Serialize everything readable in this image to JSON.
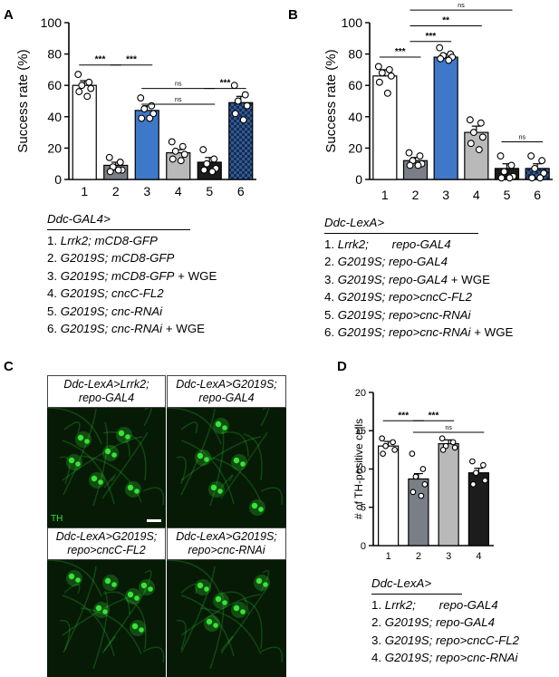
{
  "panels": {
    "A": {
      "letter": "A",
      "chart_data": {
        "type": "bar",
        "ylabel": "Success rate (%)",
        "ylim": [
          0,
          100
        ],
        "yticks": [
          0,
          20,
          40,
          60,
          80,
          100
        ],
        "categories": [
          "1",
          "2",
          "3",
          "4",
          "5",
          "6"
        ],
        "values": [
          60,
          9,
          44,
          17,
          11,
          49
        ],
        "errors": [
          3,
          2,
          3,
          2,
          3,
          4
        ],
        "fills": [
          "#ffffff",
          "#7a7f87",
          "#3f78c8",
          "#b9b9b9",
          "#1c1c1c",
          "checker"
        ],
        "points": [
          [
            67,
            62,
            60,
            58,
            56,
            53
          ],
          [
            14,
            11,
            8,
            6,
            5,
            6
          ],
          [
            52,
            47,
            45,
            42,
            39,
            39
          ],
          [
            24,
            21,
            18,
            16,
            13,
            12
          ],
          [
            19,
            13,
            10,
            7,
            6,
            5
          ],
          [
            60,
            54,
            50,
            47,
            42,
            38
          ]
        ],
        "significance": [
          {
            "from": 1,
            "to": 2,
            "label": "***",
            "y": 73
          },
          {
            "from": 2,
            "to": 3,
            "label": "***",
            "y": 73
          },
          {
            "from": 3,
            "to": 5,
            "label": "ns",
            "y": 58
          },
          {
            "from": 3,
            "to": 5,
            "label": "ns",
            "y": 48
          },
          {
            "from": 5,
            "to": 6,
            "label": "***",
            "y": 58
          }
        ]
      },
      "genotype": {
        "header": "Ddc-GAL4>",
        "lines": [
          {
            "n": "1.",
            "it": "Lrrk2; mCD8-GFP",
            "plain": ""
          },
          {
            "n": "2.",
            "it": "G2019S; mCD8-GFP",
            "plain": ""
          },
          {
            "n": "3.",
            "it": "G2019S; mCD8-GFP",
            "plain": " + WGE"
          },
          {
            "n": "4.",
            "it": "G2019S; cncC-FL2",
            "plain": ""
          },
          {
            "n": "5.",
            "it": "G2019S; cnc-RNAi",
            "plain": ""
          },
          {
            "n": "6.",
            "it": "G2019S; cnc-RNAi",
            "plain": " + WGE"
          }
        ]
      }
    },
    "B": {
      "letter": "B",
      "chart_data": {
        "type": "bar",
        "ylabel": "Success rate (%)",
        "ylim": [
          0,
          100
        ],
        "yticks": [
          0,
          20,
          40,
          60,
          80,
          100
        ],
        "categories": [
          "1",
          "2",
          "3",
          "4",
          "5",
          "6"
        ],
        "values": [
          66,
          12,
          78,
          30,
          7,
          7
        ],
        "errors": [
          4,
          2,
          2,
          4,
          3,
          3
        ],
        "fills": [
          "#ffffff",
          "#7a7f87",
          "#3f78c8",
          "#b9b9b9",
          "#1c1c1c",
          "checker"
        ],
        "points": [
          [
            72,
            70,
            68,
            66,
            62,
            55
          ],
          [
            17,
            15,
            12,
            10,
            9,
            9
          ],
          [
            84,
            80,
            79,
            78,
            77,
            76
          ],
          [
            38,
            36,
            30,
            27,
            23,
            19
          ],
          [
            15,
            9,
            5,
            2,
            1,
            1
          ],
          [
            15,
            12,
            7,
            4,
            1,
            1
          ]
        ],
        "significance": [
          {
            "from": 1,
            "to": 2,
            "label": "***",
            "y": 78
          },
          {
            "from": 2,
            "to": 3,
            "label": "***",
            "y": 88
          },
          {
            "from": 2,
            "to": 4,
            "label": "**",
            "y": 98
          },
          {
            "from": 2,
            "to": 5,
            "label": "ns",
            "y": 108
          },
          {
            "from": 5,
            "to": 6,
            "label": "ns",
            "y": 24
          }
        ]
      },
      "genotype": {
        "header": "Ddc-LexA>",
        "lines": [
          {
            "n": "1.",
            "it": "Lrrk2;       repo-GAL4",
            "plain": ""
          },
          {
            "n": "2.",
            "it": "G2019S; repo-GAL4",
            "plain": ""
          },
          {
            "n": "3.",
            "it": "G2019S; repo-GAL4",
            "plain": " + WGE"
          },
          {
            "n": "4.",
            "it": "G2019S; repo>cncC-FL2",
            "plain": ""
          },
          {
            "n": "5.",
            "it": "G2019S; repo>cnc-RNAi",
            "plain": ""
          },
          {
            "n": "6.",
            "it": "G2019S; repo>cnc-RNAi",
            "plain": " + WGE"
          }
        ]
      }
    },
    "C": {
      "letter": "C",
      "images": [
        {
          "label1": "Ddc-LexA>Lrrk2;",
          "label2": "repo-GAL4"
        },
        {
          "label1": "Ddc-LexA>G2019S;",
          "label2": "repo-GAL4"
        },
        {
          "label1": "Ddc-LexA>G2019S;",
          "label2": "repo>cncC-FL2"
        },
        {
          "label1": "Ddc-LexA>G2019S;",
          "label2": "repo>cnc-RNAi"
        }
      ],
      "stain_label": "TH",
      "stain_color": "#35e635"
    },
    "D": {
      "letter": "D",
      "chart_data": {
        "type": "bar",
        "ylabel": "# of TH-positive cells",
        "ylim": [
          0,
          20
        ],
        "yticks": [
          0,
          5,
          10,
          15,
          20
        ],
        "categories": [
          "1",
          "2",
          "3",
          "4"
        ],
        "values": [
          13,
          8.7,
          13.3,
          9.5
        ],
        "errors": [
          0.6,
          0.7,
          0.5,
          0.6
        ],
        "fills": [
          "#ffffff",
          "#7a7f87",
          "#b9b9b9",
          "#1c1c1c"
        ],
        "points": [
          [
            14,
            13.5,
            13,
            12.5,
            12
          ],
          [
            12,
            10,
            9,
            8,
            7,
            6.5
          ],
          [
            14,
            13.5,
            13,
            12.8,
            12.5
          ],
          [
            11,
            10.5,
            9.5,
            8.5,
            8
          ]
        ],
        "significance": [
          {
            "from": 1,
            "to": 2,
            "label": "***",
            "y": 16.3
          },
          {
            "from": 2,
            "to": 3,
            "label": "***",
            "y": 16.3
          },
          {
            "from": 2,
            "to": 4,
            "label": "ns",
            "y": 14.8
          }
        ]
      },
      "genotype": {
        "header": "Ddc-LexA>",
        "lines": [
          {
            "n": "1.",
            "it": "Lrrk2;       repo-GAL4",
            "plain": ""
          },
          {
            "n": "2.",
            "it": "G2019S; repo-GAL4",
            "plain": ""
          },
          {
            "n": "3.",
            "it": "G2019S; repo>cncC-FL2",
            "plain": ""
          },
          {
            "n": "4.",
            "it": "G2019S; repo>cnc-RNAi",
            "plain": ""
          }
        ]
      }
    }
  }
}
